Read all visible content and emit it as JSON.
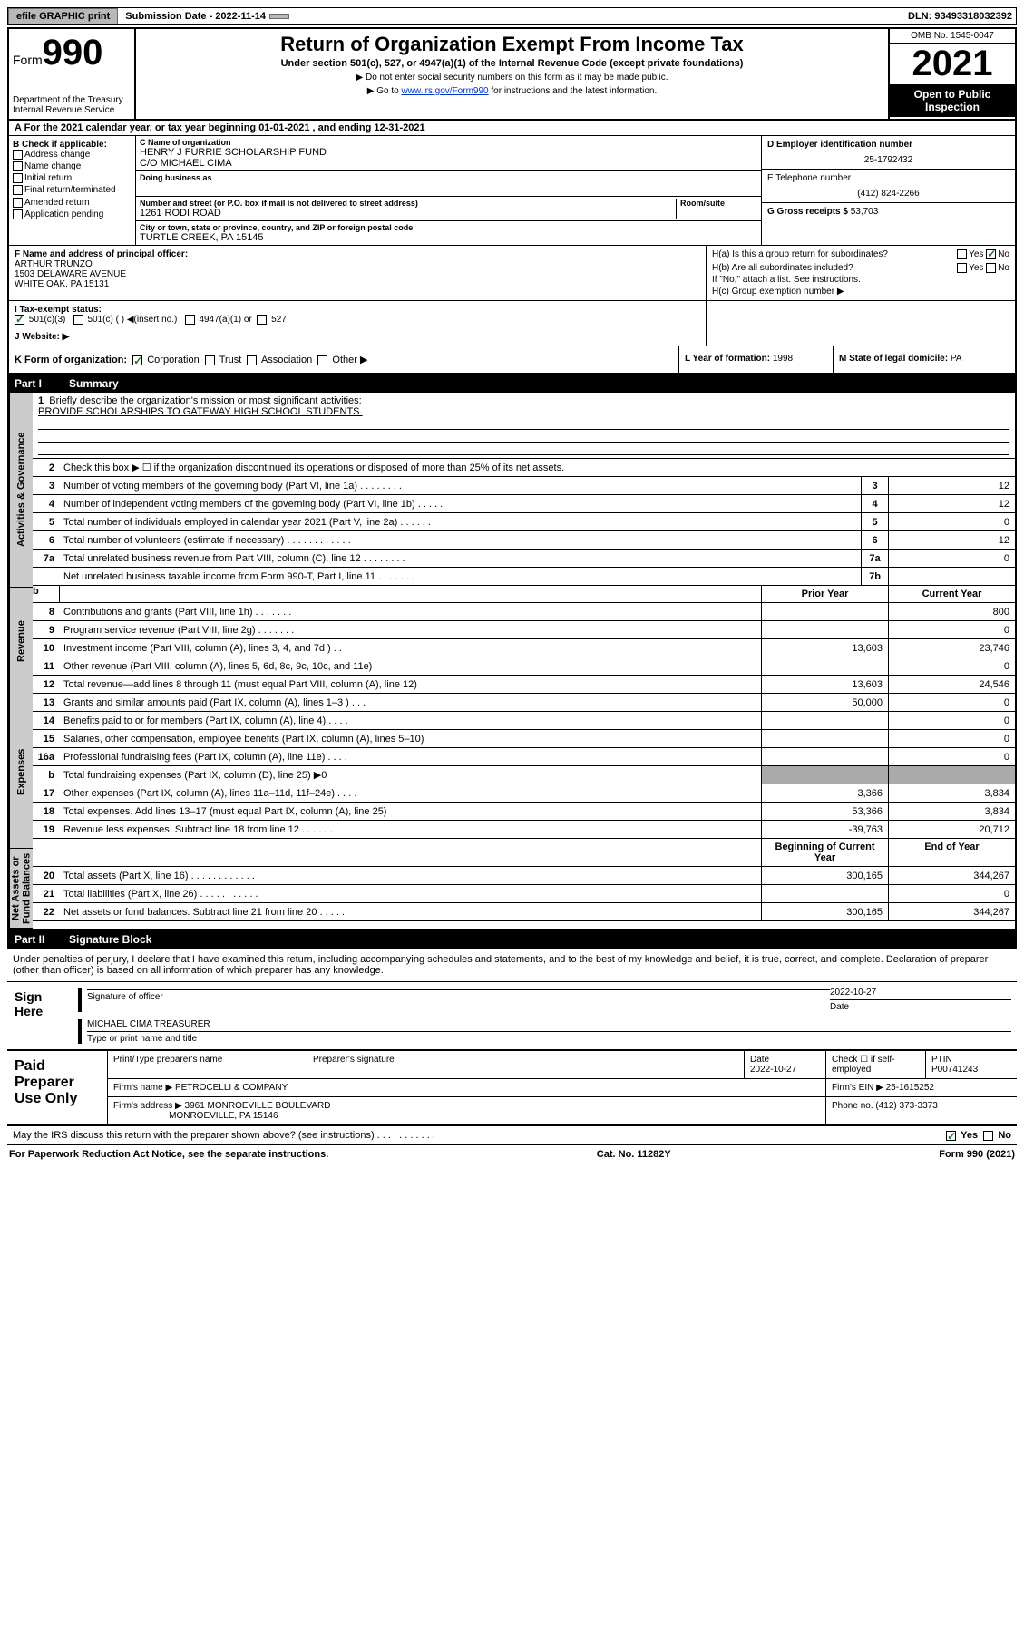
{
  "topbar": {
    "efile_btn": "efile GRAPHIC print",
    "sub_label": "Submission Date - 2022-11-14",
    "dln": "DLN: 93493318032392"
  },
  "header": {
    "form": "Form",
    "formnum": "990",
    "title": "Return of Organization Exempt From Income Tax",
    "sub1": "Under section 501(c), 527, or 4947(a)(1) of the Internal Revenue Code (except private foundations)",
    "sub2": "▶ Do not enter social security numbers on this form as it may be made public.",
    "sub3": "▶ Go to www.irs.gov/Form990 for instructions and the latest information.",
    "dept": "Department of the Treasury\nInternal Revenue Service",
    "omb": "OMB No. 1545-0047",
    "year": "2021",
    "inspection": "Open to Public Inspection"
  },
  "rowA": {
    "text": "A For the 2021 calendar year, or tax year beginning 01-01-2021    , and ending 12-31-2021"
  },
  "colB": {
    "label": "B Check if applicable:",
    "items": [
      "Address change",
      "Name change",
      "Initial return",
      "Final return/terminated",
      "Amended return",
      "Application pending"
    ]
  },
  "colC": {
    "name_label": "C Name of organization",
    "name": "HENRY J FURRIE SCHOLARSHIP FUND",
    "co": "C/O MICHAEL CIMA",
    "dba_label": "Doing business as",
    "addr_label": "Number and street (or P.O. box if mail is not delivered to street address)",
    "addr": "1261 RODI ROAD",
    "room_label": "Room/suite",
    "city_label": "City or town, state or province, country, and ZIP or foreign postal code",
    "city": "TURTLE CREEK, PA   15145"
  },
  "colD": {
    "ein_label": "D Employer identification number",
    "ein": "25-1792432",
    "phone_label": "E Telephone number",
    "phone": "(412) 824-2266",
    "gross_label": "G Gross receipts $",
    "gross": "53,703"
  },
  "rowF": {
    "label": "F  Name and address of principal officer:",
    "name": "ARTHUR TRUNZO",
    "addr1": "1503 DELAWARE AVENUE",
    "addr2": "WHITE OAK, PA   15131"
  },
  "rowH": {
    "ha": "H(a)  Is this a group return for subordinates?",
    "hb": "H(b)  Are all subordinates included?",
    "hb_note": "If \"No,\" attach a list. See instructions.",
    "hc": "H(c)  Group exemption number ▶"
  },
  "rowI": {
    "label": "I   Tax-exempt status:",
    "opt1": "501(c)(3)",
    "opt2": "501(c) (  ) ◀(insert no.)",
    "opt3": "4947(a)(1) or",
    "opt4": "527"
  },
  "rowJ": {
    "label": "J   Website: ▶"
  },
  "rowK": {
    "label": "K Form of organization:",
    "opts": [
      "Corporation",
      "Trust",
      "Association",
      "Other ▶"
    ]
  },
  "rowL": {
    "label": "L Year of formation:",
    "val": "1998"
  },
  "rowM": {
    "label": "M State of legal domicile:",
    "val": "PA"
  },
  "part1": {
    "num": "Part I",
    "title": "Summary"
  },
  "side_labels": {
    "gov": "Activities & Governance",
    "rev": "Revenue",
    "exp": "Expenses",
    "net": "Net Assets or Fund Balances"
  },
  "summary": {
    "l1_label": "Briefly describe the organization's mission or most significant activities:",
    "l1_val": "PROVIDE SCHOLARSHIPS TO GATEWAY HIGH SCHOOL STUDENTS.",
    "l2": "Check this box ▶ ☐  if the organization discontinued its operations or disposed of more than 25% of its net assets.",
    "rows_gov": [
      {
        "n": "3",
        "d": "Number of voting members of the governing body (Part VI, line 1a)    .    .    .    .    .    .    .    .",
        "b": "3",
        "v": "12"
      },
      {
        "n": "4",
        "d": "Number of independent voting members of the governing body (Part VI, line 1b)    .    .    .    .    .",
        "b": "4",
        "v": "12"
      },
      {
        "n": "5",
        "d": "Total number of individuals employed in calendar year 2021 (Part V, line 2a)    .    .    .    .    .    .",
        "b": "5",
        "v": "0"
      },
      {
        "n": "6",
        "d": "Total number of volunteers (estimate if necessary)    .    .    .    .    .    .    .    .    .    .    .    .",
        "b": "6",
        "v": "12"
      },
      {
        "n": "7a",
        "d": "Total unrelated business revenue from Part VIII, column (C), line 12    .    .    .    .    .    .    .    .",
        "b": "7a",
        "v": "0"
      },
      {
        "n": "",
        "d": "Net unrelated business taxable income from Form 990-T, Part I, line 11    .    .    .    .    .    .    .",
        "b": "7b",
        "v": ""
      }
    ],
    "colhead_prior": "Prior Year",
    "colhead_current": "Current Year",
    "rows_rev": [
      {
        "n": "8",
        "d": "Contributions and grants (Part VIII, line 1h)    .    .    .    .    .    .    .",
        "py": "",
        "cy": "800"
      },
      {
        "n": "9",
        "d": "Program service revenue (Part VIII, line 2g)    .    .    .    .    .    .    .",
        "py": "",
        "cy": "0"
      },
      {
        "n": "10",
        "d": "Investment income (Part VIII, column (A), lines 3, 4, and 7d )    .    .    .",
        "py": "13,603",
        "cy": "23,746"
      },
      {
        "n": "11",
        "d": "Other revenue (Part VIII, column (A), lines 5, 6d, 8c, 9c, 10c, and 11e)",
        "py": "",
        "cy": "0"
      },
      {
        "n": "12",
        "d": "Total revenue—add lines 8 through 11 (must equal Part VIII, column (A), line 12)",
        "py": "13,603",
        "cy": "24,546"
      }
    ],
    "rows_exp": [
      {
        "n": "13",
        "d": "Grants and similar amounts paid (Part IX, column (A), lines 1–3 )    .    .    .",
        "py": "50,000",
        "cy": "0"
      },
      {
        "n": "14",
        "d": "Benefits paid to or for members (Part IX, column (A), line 4)    .    .    .    .",
        "py": "",
        "cy": "0"
      },
      {
        "n": "15",
        "d": "Salaries, other compensation, employee benefits (Part IX, column (A), lines 5–10)",
        "py": "",
        "cy": "0"
      },
      {
        "n": "16a",
        "d": "Professional fundraising fees (Part IX, column (A), line 11e)    .    .    .    .",
        "py": "",
        "cy": "0"
      },
      {
        "n": "b",
        "d": "Total fundraising expenses (Part IX, column (D), line 25) ▶0",
        "py": "shaded",
        "cy": "shaded"
      },
      {
        "n": "17",
        "d": "Other expenses (Part IX, column (A), lines 11a–11d, 11f–24e)    .    .    .    .",
        "py": "3,366",
        "cy": "3,834"
      },
      {
        "n": "18",
        "d": "Total expenses. Add lines 13–17 (must equal Part IX, column (A), line 25)",
        "py": "53,366",
        "cy": "3,834"
      },
      {
        "n": "19",
        "d": "Revenue less expenses. Subtract line 18 from line 12    .    .    .    .    .    .",
        "py": "-39,763",
        "cy": "20,712"
      }
    ],
    "colhead_beg": "Beginning of Current Year",
    "colhead_end": "End of Year",
    "rows_net": [
      {
        "n": "20",
        "d": "Total assets (Part X, line 16)    .    .    .    .    .    .    .    .    .    .    .    .",
        "py": "300,165",
        "cy": "344,267"
      },
      {
        "n": "21",
        "d": "Total liabilities (Part X, line 26)    .    .    .    .    .    .    .    .    .    .    .",
        "py": "",
        "cy": "0"
      },
      {
        "n": "22",
        "d": "Net assets or fund balances. Subtract line 21 from line 20    .    .    .    .    .",
        "py": "300,165",
        "cy": "344,267"
      }
    ]
  },
  "part2": {
    "num": "Part II",
    "title": "Signature Block"
  },
  "sig": {
    "text": "Under penalties of perjury, I declare that I have examined this return, including accompanying schedules and statements, and to the best of my knowledge and belief, it is true, correct, and complete. Declaration of preparer (other than officer) is based on all information of which preparer has any knowledge.",
    "sign_here": "Sign Here",
    "officer_label": "Signature of officer",
    "date_label": "Date",
    "date": "2022-10-27",
    "name": "MICHAEL CIMA TREASURER",
    "name_label": "Type or print name and title"
  },
  "paid": {
    "title": "Paid Preparer Use Only",
    "h1": "Print/Type preparer's name",
    "h2": "Preparer's signature",
    "h3": "Date",
    "date": "2022-10-27",
    "h4": "Check ☐ if self-employed",
    "h5": "PTIN",
    "ptin": "P00741243",
    "firm_name_label": "Firm's name   ▶",
    "firm_name": "PETROCELLI & COMPANY",
    "firm_ein_label": "Firm's EIN ▶",
    "firm_ein": "25-1615252",
    "firm_addr_label": "Firm's address ▶",
    "firm_addr1": "3961 MONROEVILLE BOULEVARD",
    "firm_addr2": "MONROEVILLE, PA   15146",
    "phone_label": "Phone no.",
    "phone": "(412) 373-3373"
  },
  "discuss": {
    "q": "May the IRS discuss this return with the preparer shown above? (see instructions)    .    .    .    .    .    .    .    .    .    .    .",
    "yes": "Yes",
    "no": "No"
  },
  "footer": {
    "left": "For Paperwork Reduction Act Notice, see the separate instructions.",
    "mid": "Cat. No. 11282Y",
    "right": "Form 990 (2021)"
  }
}
